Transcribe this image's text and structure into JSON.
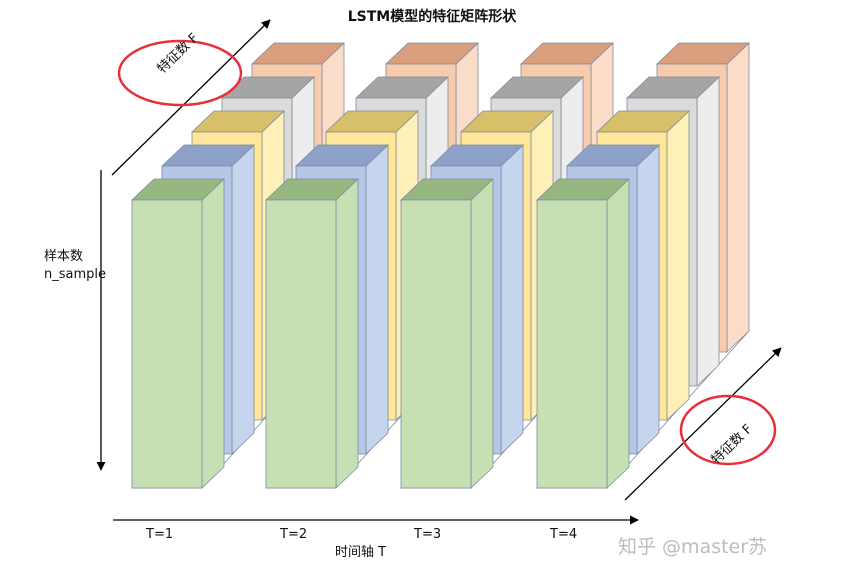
{
  "title": "LSTM模型的特征矩阵形状",
  "y_axis_label": {
    "line1": "样本数",
    "line2": "n_sample"
  },
  "x_axis_label": "时间轴 T",
  "time_steps": [
    "T=1",
    "T=2",
    "T=3",
    "T=4"
  ],
  "feature_label_top": "特征数 F",
  "feature_label_right": "特征数 F",
  "watermark": "知乎 @master苏",
  "colors": {
    "layers_front_to_back": [
      {
        "front": "#c6e0b4",
        "top": "#97b780",
        "side": "#c6e0b4"
      },
      {
        "front": "#b4c7e7",
        "top": "#8ea1c8",
        "side": "#c5d5ee"
      },
      {
        "front": "#ffe699",
        "top": "#d8bf6a",
        "side": "#fff0b8"
      },
      {
        "front": "#dbdbdb",
        "top": "#a5a5a5",
        "side": "#ededed"
      },
      {
        "front": "#f8cbad",
        "top": "#d99e7e",
        "side": "#fbdcc8"
      }
    ],
    "ellipse": "#e8303a",
    "axis": "#000000"
  }
}
